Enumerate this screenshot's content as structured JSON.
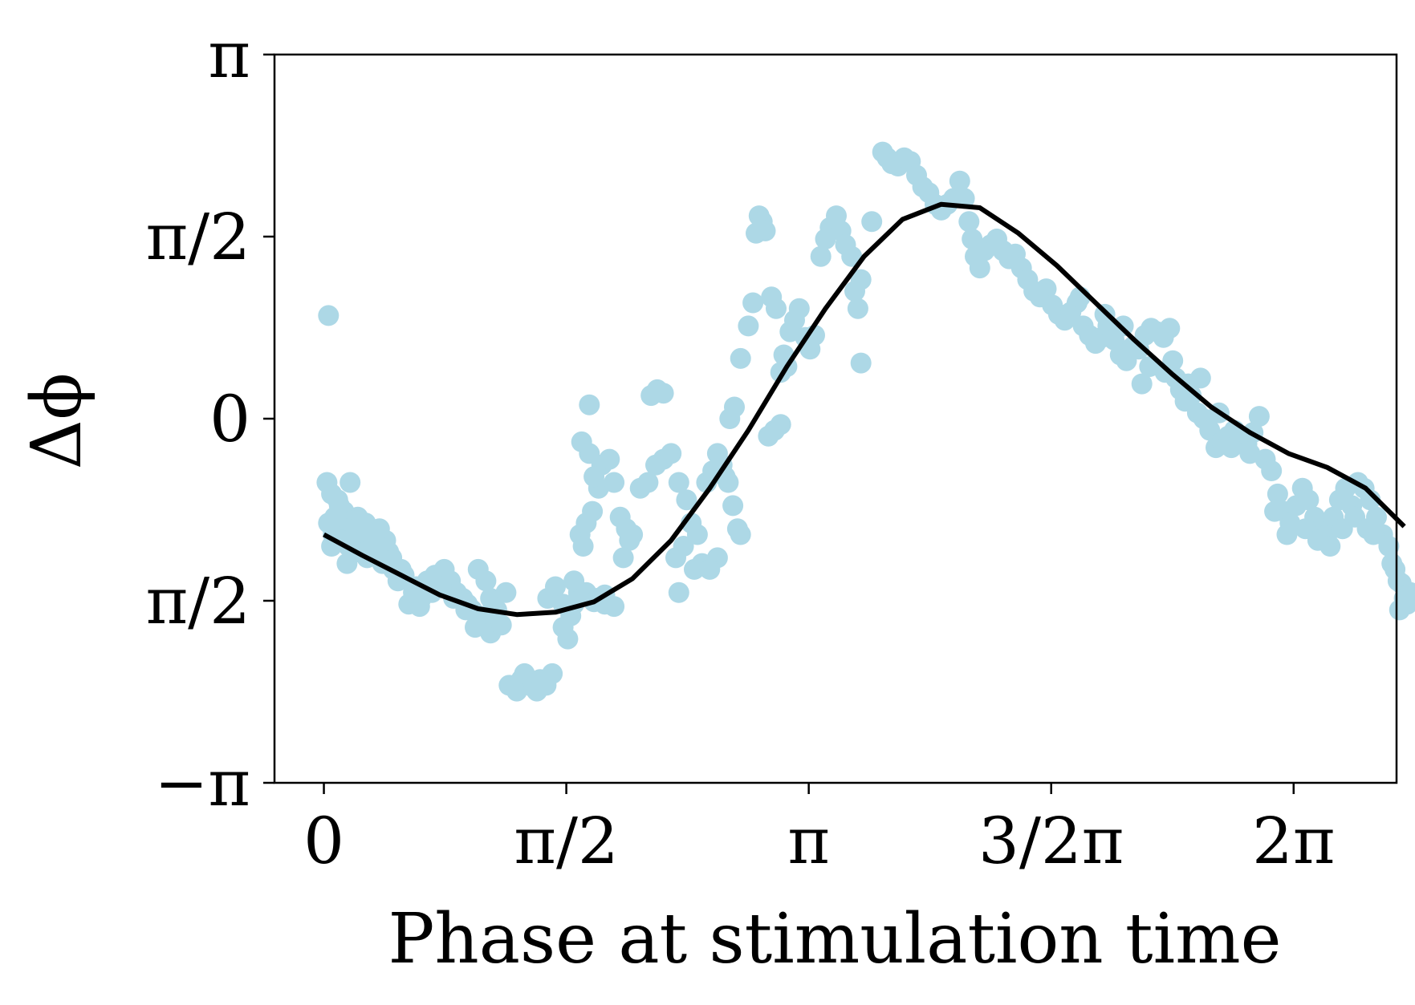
{
  "colors": {
    "scatter": "#add8e6",
    "fit_line": "#000000",
    "axes": "#000000",
    "background": "#ffffff"
  },
  "chart_data": {
    "type": "scatter",
    "title": "",
    "xlabel": "Phase at stimulation time",
    "ylabel": "Δϕ",
    "xlim": [
      -0.32,
      6.95
    ],
    "ylim": [
      -3.14159,
      3.14159
    ],
    "xticks": [
      0,
      1.5708,
      3.14159,
      4.7124,
      6.28319
    ],
    "xtick_labels": [
      "0",
      "π/2",
      "π",
      "3/2π",
      "2π"
    ],
    "yticks": [
      -3.14159,
      -1.5708,
      0,
      1.5708,
      3.14159
    ],
    "ytick_labels": [
      "−π",
      "π/2",
      "0",
      "π/2",
      "π"
    ],
    "grid": false,
    "legend": "none",
    "series": [
      {
        "kind": "scatter",
        "points": [
          [
            0.03,
            0.89
          ],
          [
            0.02,
            -0.55
          ],
          [
            0.05,
            -0.65
          ],
          [
            0.03,
            -0.9
          ],
          [
            0.06,
            -1.0
          ],
          [
            0.1,
            -0.75
          ],
          [
            0.13,
            -0.8
          ],
          [
            0.16,
            -1.1
          ],
          [
            0.2,
            -0.95
          ],
          [
            0.22,
            -0.85
          ],
          [
            0.25,
            -1.05
          ],
          [
            0.28,
            -1.2
          ],
          [
            0.32,
            -1.0
          ],
          [
            0.35,
            -1.1
          ],
          [
            0.38,
            -1.25
          ],
          [
            0.42,
            -1.15
          ],
          [
            0.45,
            -1.3
          ],
          [
            0.48,
            -1.4
          ],
          [
            0.52,
            -1.35
          ],
          [
            0.55,
            -1.6
          ],
          [
            0.6,
            -1.45
          ],
          [
            0.63,
            -1.55
          ],
          [
            0.67,
            -1.4
          ],
          [
            0.72,
            -1.35
          ],
          [
            0.78,
            -1.3
          ],
          [
            0.82,
            -1.4
          ],
          [
            0.86,
            -1.5
          ],
          [
            0.9,
            -1.55
          ],
          [
            0.93,
            -1.6
          ],
          [
            0.96,
            -1.65
          ],
          [
            1.0,
            -1.7
          ],
          [
            1.03,
            -1.75
          ],
          [
            1.05,
            -1.7
          ],
          [
            0.98,
            -1.8
          ],
          [
            0.92,
            -1.65
          ],
          [
            0.84,
            -1.55
          ],
          [
            0.76,
            -1.45
          ],
          [
            0.7,
            -1.5
          ],
          [
            0.62,
            -1.62
          ],
          [
            0.58,
            -1.5
          ],
          [
            0.5,
            -1.3
          ],
          [
            0.44,
            -1.2
          ],
          [
            0.4,
            -1.05
          ],
          [
            0.36,
            -0.95
          ],
          [
            0.3,
            -1.08
          ],
          [
            0.27,
            -0.9
          ],
          [
            0.23,
            -0.98
          ],
          [
            0.18,
            -0.88
          ],
          [
            0.15,
            -0.95
          ],
          [
            0.12,
            -1.05
          ],
          [
            0.09,
            -0.7
          ],
          [
            0.17,
            -0.55
          ],
          [
            0.07,
            -0.85
          ],
          [
            0.05,
            -1.1
          ],
          [
            0.11,
            -1.05
          ],
          [
            0.15,
            -1.25
          ],
          [
            0.21,
            -1.15
          ],
          [
            1.08,
            -1.85
          ],
          [
            1.12,
            -1.75
          ],
          [
            1.15,
            -1.78
          ],
          [
            1.2,
            -2.3
          ],
          [
            1.25,
            -2.35
          ],
          [
            1.28,
            -2.25
          ],
          [
            1.32,
            -2.28
          ],
          [
            1.36,
            -2.32
          ],
          [
            1.4,
            -2.25
          ],
          [
            1.44,
            -2.3
          ],
          [
            1.48,
            -2.2
          ],
          [
            1.3,
            -2.2
          ],
          [
            1.38,
            -2.35
          ],
          [
            1.0,
            -1.3
          ],
          [
            1.05,
            -1.4
          ],
          [
            1.08,
            -1.55
          ],
          [
            1.12,
            -1.65
          ],
          [
            1.18,
            -1.5
          ],
          [
            1.45,
            -1.55
          ],
          [
            1.5,
            -1.45
          ],
          [
            1.55,
            -1.8
          ],
          [
            1.58,
            -1.9
          ],
          [
            1.6,
            -1.7
          ],
          [
            1.62,
            -1.6
          ],
          [
            1.65,
            -1.5
          ],
          [
            1.55,
            -1.6
          ],
          [
            1.62,
            -1.4
          ],
          [
            1.66,
            -1.0
          ],
          [
            1.7,
            -0.9
          ],
          [
            1.68,
            -1.1
          ],
          [
            1.74,
            -0.8
          ],
          [
            1.78,
            -0.6
          ],
          [
            1.8,
            -0.4
          ],
          [
            1.75,
            -0.5
          ],
          [
            1.72,
            -0.3
          ],
          [
            1.67,
            -0.2
          ],
          [
            1.85,
            -0.35
          ],
          [
            1.88,
            -0.55
          ],
          [
            1.92,
            -0.85
          ],
          [
            1.96,
            -0.95
          ],
          [
            1.98,
            -1.05
          ],
          [
            1.94,
            -1.2
          ],
          [
            1.72,
            0.12
          ],
          [
            1.7,
            -1.5
          ],
          [
            1.77,
            -1.55
          ],
          [
            1.82,
            -1.6
          ],
          [
            2.05,
            -0.6
          ],
          [
            2.1,
            -0.55
          ],
          [
            2.15,
            -0.4
          ],
          [
            2.2,
            -0.35
          ],
          [
            2.25,
            -0.3
          ],
          [
            2.12,
            0.2
          ],
          [
            2.16,
            0.25
          ],
          [
            2.2,
            0.22
          ],
          [
            2.3,
            -0.55
          ],
          [
            2.35,
            -0.7
          ],
          [
            2.38,
            -0.9
          ],
          [
            2.42,
            -1.0
          ],
          [
            2.33,
            -1.1
          ],
          [
            2.28,
            -1.2
          ],
          [
            2.3,
            -1.5
          ],
          [
            2.4,
            -1.3
          ],
          [
            2.45,
            -1.25
          ],
          [
            2.48,
            -0.55
          ],
          [
            2.52,
            -0.45
          ],
          [
            2.55,
            -0.3
          ],
          [
            2.58,
            -0.4
          ],
          [
            2.62,
            -0.55
          ],
          [
            2.65,
            -0.75
          ],
          [
            2.68,
            -0.95
          ],
          [
            2.7,
            -1.0
          ],
          [
            2.55,
            -1.2
          ],
          [
            2.6,
            -0.5
          ],
          [
            1.82,
            -1.52
          ],
          [
            1.88,
            -1.62
          ],
          [
            1.75,
            -1.58
          ],
          [
            2.5,
            -1.3
          ],
          [
            2.0,
            -1.0
          ],
          [
            2.63,
            0.0
          ],
          [
            2.66,
            0.1
          ],
          [
            2.7,
            0.52
          ],
          [
            2.75,
            0.8
          ],
          [
            2.78,
            1.0
          ],
          [
            2.8,
            1.6
          ],
          [
            2.82,
            1.75
          ],
          [
            2.84,
            1.7
          ],
          [
            2.86,
            1.62
          ],
          [
            2.9,
            1.05
          ],
          [
            2.93,
            0.95
          ],
          [
            2.96,
            0.4
          ],
          [
            2.98,
            0.55
          ],
          [
            3.0,
            0.45
          ],
          [
            3.02,
            0.75
          ],
          [
            3.05,
            0.85
          ],
          [
            3.08,
            0.95
          ],
          [
            3.12,
            0.7
          ],
          [
            3.15,
            0.6
          ],
          [
            3.18,
            0.72
          ],
          [
            3.22,
            1.4
          ],
          [
            3.25,
            1.55
          ],
          [
            3.28,
            1.65
          ],
          [
            3.32,
            1.75
          ],
          [
            3.35,
            1.62
          ],
          [
            3.38,
            1.5
          ],
          [
            3.42,
            1.4
          ],
          [
            3.44,
            1.1
          ],
          [
            3.46,
            0.95
          ],
          [
            3.48,
            1.2
          ],
          [
            2.88,
            -0.15
          ],
          [
            2.92,
            -0.1
          ],
          [
            2.96,
            -0.05
          ],
          [
            3.48,
            0.48
          ],
          [
            3.55,
            1.7
          ],
          [
            3.62,
            2.3
          ],
          [
            3.65,
            2.25
          ],
          [
            3.68,
            2.2
          ],
          [
            3.72,
            2.18
          ],
          [
            3.76,
            2.25
          ],
          [
            3.8,
            2.22
          ],
          [
            3.84,
            2.1
          ],
          [
            3.88,
            2.0
          ],
          [
            3.92,
            1.95
          ],
          [
            3.96,
            1.85
          ],
          [
            4.0,
            1.8
          ],
          [
            4.04,
            1.85
          ],
          [
            4.08,
            1.9
          ],
          [
            4.12,
            2.05
          ],
          [
            4.15,
            1.9
          ],
          [
            4.18,
            1.7
          ],
          [
            4.2,
            1.55
          ],
          [
            4.22,
            1.4
          ],
          [
            4.25,
            1.3
          ],
          [
            4.28,
            1.45
          ],
          [
            4.32,
            1.5
          ],
          [
            4.36,
            1.55
          ],
          [
            4.4,
            1.45
          ],
          [
            4.44,
            1.38
          ],
          [
            4.48,
            1.42
          ],
          [
            4.52,
            1.3
          ],
          [
            4.56,
            1.2
          ],
          [
            4.6,
            1.1
          ],
          [
            4.64,
            1.05
          ],
          [
            4.68,
            1.12
          ],
          [
            4.72,
            0.98
          ],
          [
            4.76,
            0.9
          ],
          [
            4.8,
            0.85
          ],
          [
            4.84,
            0.92
          ],
          [
            4.88,
            1.0
          ],
          [
            4.92,
            0.8
          ],
          [
            4.96,
            0.72
          ],
          [
            5.0,
            0.65
          ],
          [
            5.04,
            0.7
          ],
          [
            5.08,
            0.8
          ],
          [
            5.12,
            0.68
          ],
          [
            5.16,
            0.55
          ],
          [
            5.2,
            0.5
          ],
          [
            5.24,
            0.62
          ],
          [
            5.28,
            0.6
          ],
          [
            5.32,
            0.72
          ],
          [
            5.36,
            0.78
          ],
          [
            5.4,
            0.75
          ],
          [
            5.44,
            0.7
          ],
          [
            5.48,
            0.78
          ],
          [
            5.5,
            0.5
          ],
          [
            5.52,
            0.35
          ],
          [
            5.55,
            0.25
          ],
          [
            5.58,
            0.15
          ],
          [
            5.62,
            0.2
          ],
          [
            5.66,
            0.05
          ],
          [
            5.7,
            0.0
          ],
          [
            5.74,
            -0.1
          ],
          [
            5.78,
            -0.25
          ],
          [
            5.82,
            -0.2
          ],
          [
            5.86,
            -0.15
          ],
          [
            5.9,
            -0.1
          ],
          [
            5.94,
            -0.18
          ],
          [
            5.98,
            -0.22
          ],
          [
            6.02,
            -0.12
          ],
          [
            6.06,
            0.02
          ],
          [
            6.1,
            -0.35
          ],
          [
            6.14,
            -0.45
          ],
          [
            6.18,
            -0.65
          ],
          [
            6.22,
            -0.8
          ],
          [
            6.26,
            -0.9
          ],
          [
            6.3,
            -0.75
          ],
          [
            6.34,
            -0.6
          ],
          [
            6.38,
            -0.7
          ],
          [
            6.42,
            -0.85
          ],
          [
            6.46,
            -0.95
          ],
          [
            6.5,
            -1.0
          ],
          [
            6.54,
            -0.85
          ],
          [
            6.58,
            -0.7
          ],
          [
            6.62,
            -0.6
          ],
          [
            6.66,
            -0.75
          ],
          [
            6.7,
            -0.55
          ],
          [
            6.74,
            -0.6
          ],
          [
            6.78,
            -0.7
          ],
          [
            6.82,
            -0.85
          ],
          [
            6.86,
            -1.0
          ],
          [
            6.9,
            -1.1
          ],
          [
            6.92,
            -1.25
          ],
          [
            6.94,
            -1.3
          ],
          [
            6.96,
            -1.4
          ],
          [
            6.98,
            -1.42
          ],
          [
            7.0,
            -1.55
          ],
          [
            7.02,
            -1.6
          ],
          [
            7.04,
            -1.5
          ],
          [
            6.97,
            -1.65
          ],
          [
            4.9,
            1.05
          ],
          [
            5.06,
            0.9
          ],
          [
            5.18,
            0.8
          ],
          [
            5.3,
            0.3
          ],
          [
            5.35,
            0.45
          ],
          [
            5.45,
            0.4
          ],
          [
            5.6,
            0.3
          ],
          [
            5.68,
            0.35
          ],
          [
            5.8,
            0.05
          ],
          [
            5.88,
            -0.25
          ],
          [
            6.0,
            -0.3
          ],
          [
            6.16,
            -0.8
          ],
          [
            6.24,
            -1.0
          ],
          [
            6.36,
            -0.95
          ],
          [
            6.44,
            -1.05
          ],
          [
            6.52,
            -1.1
          ],
          [
            6.6,
            -0.95
          ],
          [
            6.68,
            -0.85
          ],
          [
            6.76,
            -0.95
          ],
          [
            6.8,
            -1.0
          ]
        ]
      },
      {
        "kind": "line",
        "x": [
          0.0,
          0.25,
          0.5,
          0.75,
          1.0,
          1.25,
          1.5,
          1.75,
          2.0,
          2.25,
          2.5,
          2.75,
          3.0,
          3.25,
          3.5,
          3.75,
          4.0,
          4.25,
          4.5,
          4.75,
          5.0,
          5.25,
          5.5,
          5.75,
          6.0,
          6.25,
          6.5,
          6.75,
          7.0
        ],
        "y": [
          -1.0,
          -1.18,
          -1.35,
          -1.52,
          -1.64,
          -1.69,
          -1.67,
          -1.58,
          -1.38,
          -1.05,
          -0.6,
          -0.1,
          0.45,
          0.95,
          1.4,
          1.72,
          1.85,
          1.82,
          1.6,
          1.32,
          1.0,
          0.68,
          0.38,
          0.1,
          -0.12,
          -0.3,
          -0.42,
          -0.6,
          -0.93
        ]
      }
    ]
  }
}
